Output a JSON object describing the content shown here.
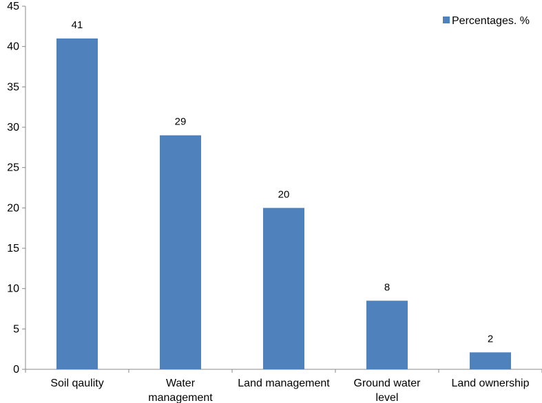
{
  "chart_data": {
    "type": "bar",
    "categories": [
      [
        "Soil qaulity"
      ],
      [
        "Water",
        "management"
      ],
      [
        "Land management"
      ],
      [
        "Ground water",
        "level"
      ],
      [
        "Land ownership"
      ]
    ],
    "series": [
      {
        "name": "Percentages. %",
        "values": [
          41,
          29,
          20,
          8.5,
          2.1
        ],
        "labels": [
          "41",
          "29",
          "20",
          "8",
          "2"
        ]
      }
    ],
    "ylim": [
      0,
      45
    ],
    "yticks": [
      0,
      5,
      10,
      15,
      20,
      25,
      30,
      35,
      40,
      45
    ],
    "grid": false,
    "legend_position": "top-right",
    "colors": {
      "bar": "#4f81bd",
      "axis": "#888888"
    }
  }
}
